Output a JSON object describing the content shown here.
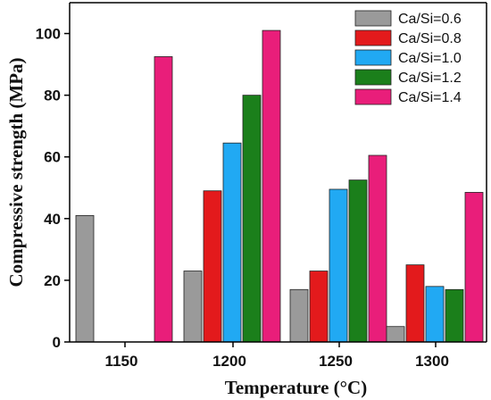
{
  "chart_data": {
    "type": "bar",
    "xlabel": "Temperature (°C)",
    "ylabel": "Compressive strength (MPa)",
    "ylim": [
      0,
      110
    ],
    "yticks": [
      0,
      20,
      40,
      60,
      80,
      100
    ],
    "categories": [
      "1150",
      "1200",
      "1250",
      "1300"
    ],
    "series": [
      {
        "name": "Ca/Si=0.6",
        "color": "#9a9a9a",
        "values": [
          41,
          23,
          17,
          5
        ]
      },
      {
        "name": "Ca/Si=0.8",
        "color": "#e31a1c",
        "values": [
          null,
          49,
          23,
          25
        ]
      },
      {
        "name": "Ca/Si=1.0",
        "color": "#21a9f3",
        "values": [
          null,
          64.5,
          49.5,
          18
        ]
      },
      {
        "name": "Ca/Si=1.2",
        "color": "#1b7f1b",
        "values": [
          null,
          80,
          52.5,
          17
        ]
      },
      {
        "name": "Ca/Si=1.4",
        "color": "#e91e7a",
        "values": [
          92.5,
          101,
          60.5,
          48.5
        ]
      }
    ],
    "grid": false,
    "legend_position": "top-right"
  }
}
